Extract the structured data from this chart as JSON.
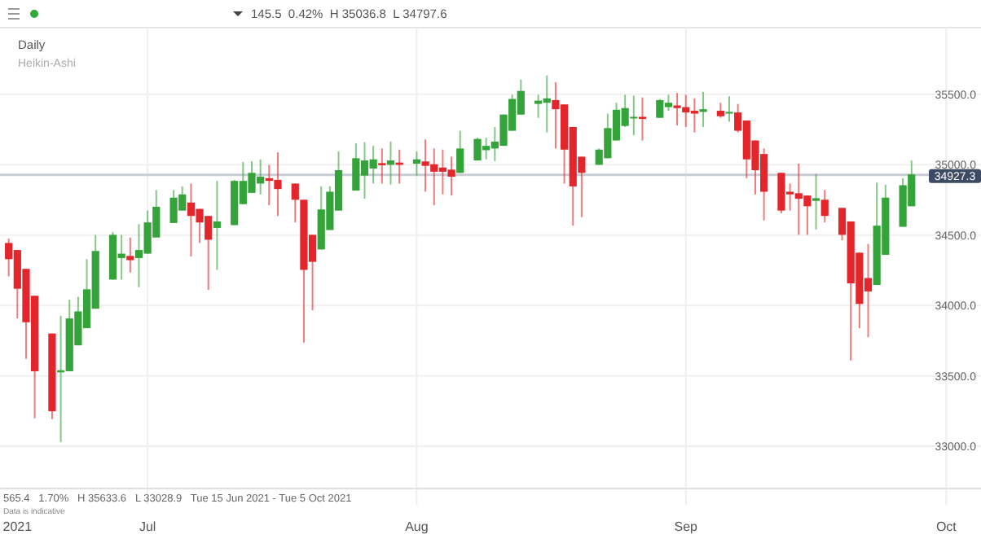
{
  "chart_data": {
    "type": "candlestick",
    "x": [
      "2021-06-15",
      "2021-06-16",
      "2021-06-17",
      "2021-06-18",
      "2021-06-20",
      "2021-06-21",
      "2021-06-22",
      "2021-06-23",
      "2021-06-24",
      "2021-06-25",
      "2021-06-27",
      "2021-06-28",
      "2021-06-29",
      "2021-06-30",
      "2021-07-01",
      "2021-07-02",
      "2021-07-04",
      "2021-07-05",
      "2021-07-06",
      "2021-07-07",
      "2021-07-08",
      "2021-07-09",
      "2021-07-11",
      "2021-07-12",
      "2021-07-13",
      "2021-07-14",
      "2021-07-15",
      "2021-07-16",
      "2021-07-18",
      "2021-07-19",
      "2021-07-20",
      "2021-07-21",
      "2021-07-22",
      "2021-07-23",
      "2021-07-25",
      "2021-07-26",
      "2021-07-27",
      "2021-07-28",
      "2021-07-29",
      "2021-07-30",
      "2021-08-01",
      "2021-08-02",
      "2021-08-03",
      "2021-08-04",
      "2021-08-05",
      "2021-08-06",
      "2021-08-08",
      "2021-08-09",
      "2021-08-10",
      "2021-08-11",
      "2021-08-12",
      "2021-08-13",
      "2021-08-15",
      "2021-08-16",
      "2021-08-17",
      "2021-08-18",
      "2021-08-19",
      "2021-08-20",
      "2021-08-22",
      "2021-08-23",
      "2021-08-24",
      "2021-08-25",
      "2021-08-26",
      "2021-08-27",
      "2021-08-29",
      "2021-08-30",
      "2021-08-31",
      "2021-09-01",
      "2021-09-02",
      "2021-09-03",
      "2021-09-05",
      "2021-09-06",
      "2021-09-07",
      "2021-09-08",
      "2021-09-09",
      "2021-09-10",
      "2021-09-12",
      "2021-09-13",
      "2021-09-14",
      "2021-09-15",
      "2021-09-16",
      "2021-09-17",
      "2021-09-19",
      "2021-09-20",
      "2021-09-21",
      "2021-09-22",
      "2021-09-23",
      "2021-09-24",
      "2021-09-26",
      "2021-09-27"
    ],
    "ohlc": [
      [
        34444,
        34475,
        34207,
        34329
      ],
      [
        34394,
        34394,
        33908,
        34119
      ],
      [
        34260,
        34260,
        33621,
        33881
      ],
      [
        34069,
        34069,
        33199,
        33533
      ],
      [
        33801,
        33801,
        33192,
        33249
      ],
      [
        33525,
        33927,
        33029,
        33540
      ],
      [
        33533,
        34042,
        33533,
        33908
      ],
      [
        33717,
        34061,
        33717,
        33958
      ],
      [
        33839,
        34329,
        33839,
        34115
      ],
      [
        33977,
        34502,
        33977,
        34387
      ],
      [
        34184,
        34521,
        34184,
        34502
      ],
      [
        34337,
        34502,
        34184,
        34368
      ],
      [
        34352,
        34483,
        34234,
        34322
      ],
      [
        34337,
        34578,
        34130,
        34394
      ],
      [
        34368,
        34674,
        34368,
        34590
      ],
      [
        34483,
        34820,
        34483,
        34701
      ],
      [
        34586,
        34820,
        34586,
        34766
      ],
      [
        34674,
        34846,
        34674,
        34789
      ],
      [
        34731,
        34866,
        34348,
        34636
      ],
      [
        34686,
        34686,
        34444,
        34590
      ],
      [
        34636,
        34636,
        34111,
        34467
      ],
      [
        34551,
        34885,
        34253,
        34597
      ],
      [
        34571,
        34892,
        34571,
        34885
      ],
      [
        34720,
        35019,
        34720,
        34885
      ],
      [
        34800,
        35026,
        34800,
        34942
      ],
      [
        34866,
        35038,
        34789,
        34915
      ],
      [
        34904,
        34999,
        34712,
        34885
      ],
      [
        34892,
        35088,
        34636,
        34827
      ],
      [
        34866,
        34866,
        34590,
        34751
      ],
      [
        34751,
        34751,
        33736,
        34253
      ],
      [
        34502,
        34502,
        33966,
        34310
      ],
      [
        34398,
        34846,
        34398,
        34682
      ],
      [
        34536,
        34846,
        34536,
        34808
      ],
      [
        34674,
        35095,
        34674,
        34961
      ],
      [
        34816,
        35153,
        34816,
        35046
      ],
      [
        34923,
        35160,
        34758,
        35030
      ],
      [
        34973,
        35134,
        34866,
        35038
      ],
      [
        35011,
        35115,
        34866,
        34996
      ],
      [
        34999,
        35164,
        34858,
        35030
      ],
      [
        35015,
        35107,
        34866,
        34999
      ],
      [
        35007,
        35095,
        34923,
        35038
      ],
      [
        35023,
        35180,
        34808,
        34992
      ],
      [
        35003,
        35115,
        34712,
        34950
      ],
      [
        34980,
        35107,
        34789,
        34950
      ],
      [
        34965,
        35057,
        34781,
        34915
      ],
      [
        34942,
        35241,
        34942,
        35115
      ],
      [
        35030,
        35191,
        35030,
        35183
      ],
      [
        35103,
        35191,
        35038,
        35134
      ],
      [
        35115,
        35268,
        35026,
        35164
      ],
      [
        35134,
        35356,
        35134,
        35356
      ],
      [
        35241,
        35497,
        35241,
        35467
      ],
      [
        35356,
        35605,
        35356,
        35524
      ],
      [
        35432,
        35497,
        35333,
        35455
      ],
      [
        35440,
        35634,
        35229,
        35471
      ],
      [
        35459,
        35586,
        35115,
        35394
      ],
      [
        35428,
        35428,
        34866,
        35107
      ],
      [
        35268,
        35268,
        34567,
        34846
      ],
      [
        35057,
        35057,
        34628,
        34942
      ],
      [
        34999,
        35115,
        34999,
        35107
      ],
      [
        35046,
        35363,
        35046,
        35260
      ],
      [
        35172,
        35440,
        35172,
        35390
      ],
      [
        35275,
        35497,
        35268,
        35402
      ],
      [
        35333,
        35490,
        35210,
        35340
      ],
      [
        35340,
        35478,
        35172,
        35325
      ],
      [
        35333,
        35467,
        35333,
        35459
      ],
      [
        35409,
        35497,
        35383,
        35440
      ],
      [
        35421,
        35509,
        35279,
        35402
      ],
      [
        35409,
        35497,
        35268,
        35371
      ],
      [
        35383,
        35471,
        35229,
        35363
      ],
      [
        35375,
        35517,
        35268,
        35394
      ],
      [
        35383,
        35440,
        35333,
        35344
      ],
      [
        35363,
        35486,
        35306,
        35375
      ],
      [
        35371,
        35432,
        35229,
        35241
      ],
      [
        35314,
        35314,
        34904,
        35038
      ],
      [
        35172,
        35172,
        34789,
        34961
      ],
      [
        35076,
        35115,
        34605,
        34808
      ],
      [
        34942,
        34942,
        34655,
        34674
      ],
      [
        34808,
        34866,
        34674,
        34789
      ],
      [
        34797,
        35007,
        34502,
        34758
      ],
      [
        34781,
        34781,
        34502,
        34705
      ],
      [
        34743,
        34934,
        34540,
        34762
      ],
      [
        34751,
        34820,
        34590,
        34636
      ],
      [
        34693,
        34693,
        34463,
        34502
      ],
      [
        34597,
        34597,
        33609,
        34157
      ],
      [
        34375,
        34375,
        33839,
        34011
      ],
      [
        34195,
        34437,
        33774,
        34100
      ],
      [
        34146,
        34873,
        34146,
        34567
      ],
      [
        34360,
        34858,
        34360,
        34766
      ],
      [
        34559,
        34904,
        34559,
        34854
      ],
      [
        34705,
        35030,
        34705,
        34931
      ]
    ],
    "xlim": [
      "2021-06-14",
      "2021-10-05"
    ],
    "xticks": [
      {
        "value": "2021-06-16",
        "label": "2021"
      },
      {
        "value": "2021-07-01",
        "label": "Jul"
      },
      {
        "value": "2021-08-01",
        "label": "Aug"
      },
      {
        "value": "2021-09-01",
        "label": "Sep"
      },
      {
        "value": "2021-10-01",
        "label": "Oct"
      }
    ],
    "ylim": [
      32700,
      35950
    ],
    "yticks": [
      {
        "value": 33000,
        "label": "33000.0"
      },
      {
        "value": 33500,
        "label": "33500.0"
      },
      {
        "value": 34000,
        "label": "34000.0"
      },
      {
        "value": 34500,
        "label": "34500.0"
      },
      {
        "value": 35000,
        "label": "35000.0"
      },
      {
        "value": 35500,
        "label": "35500.0"
      }
    ],
    "grid": true,
    "ref_lines": [
      {
        "axis": "y",
        "value": 34927.3,
        "label": "34927.3",
        "color": "#c8ccd4"
      }
    ],
    "annotations": [
      "145.5  0.42%  H 35036.8  L 34797.6",
      "Daily",
      "Heikin-Ashi",
      "565.4   1.70%   H 35633.6   L 33028.9   Tue 15 Jun 2021 - Tue 5 Oct 2021",
      "Data is indicative"
    ]
  }
}
